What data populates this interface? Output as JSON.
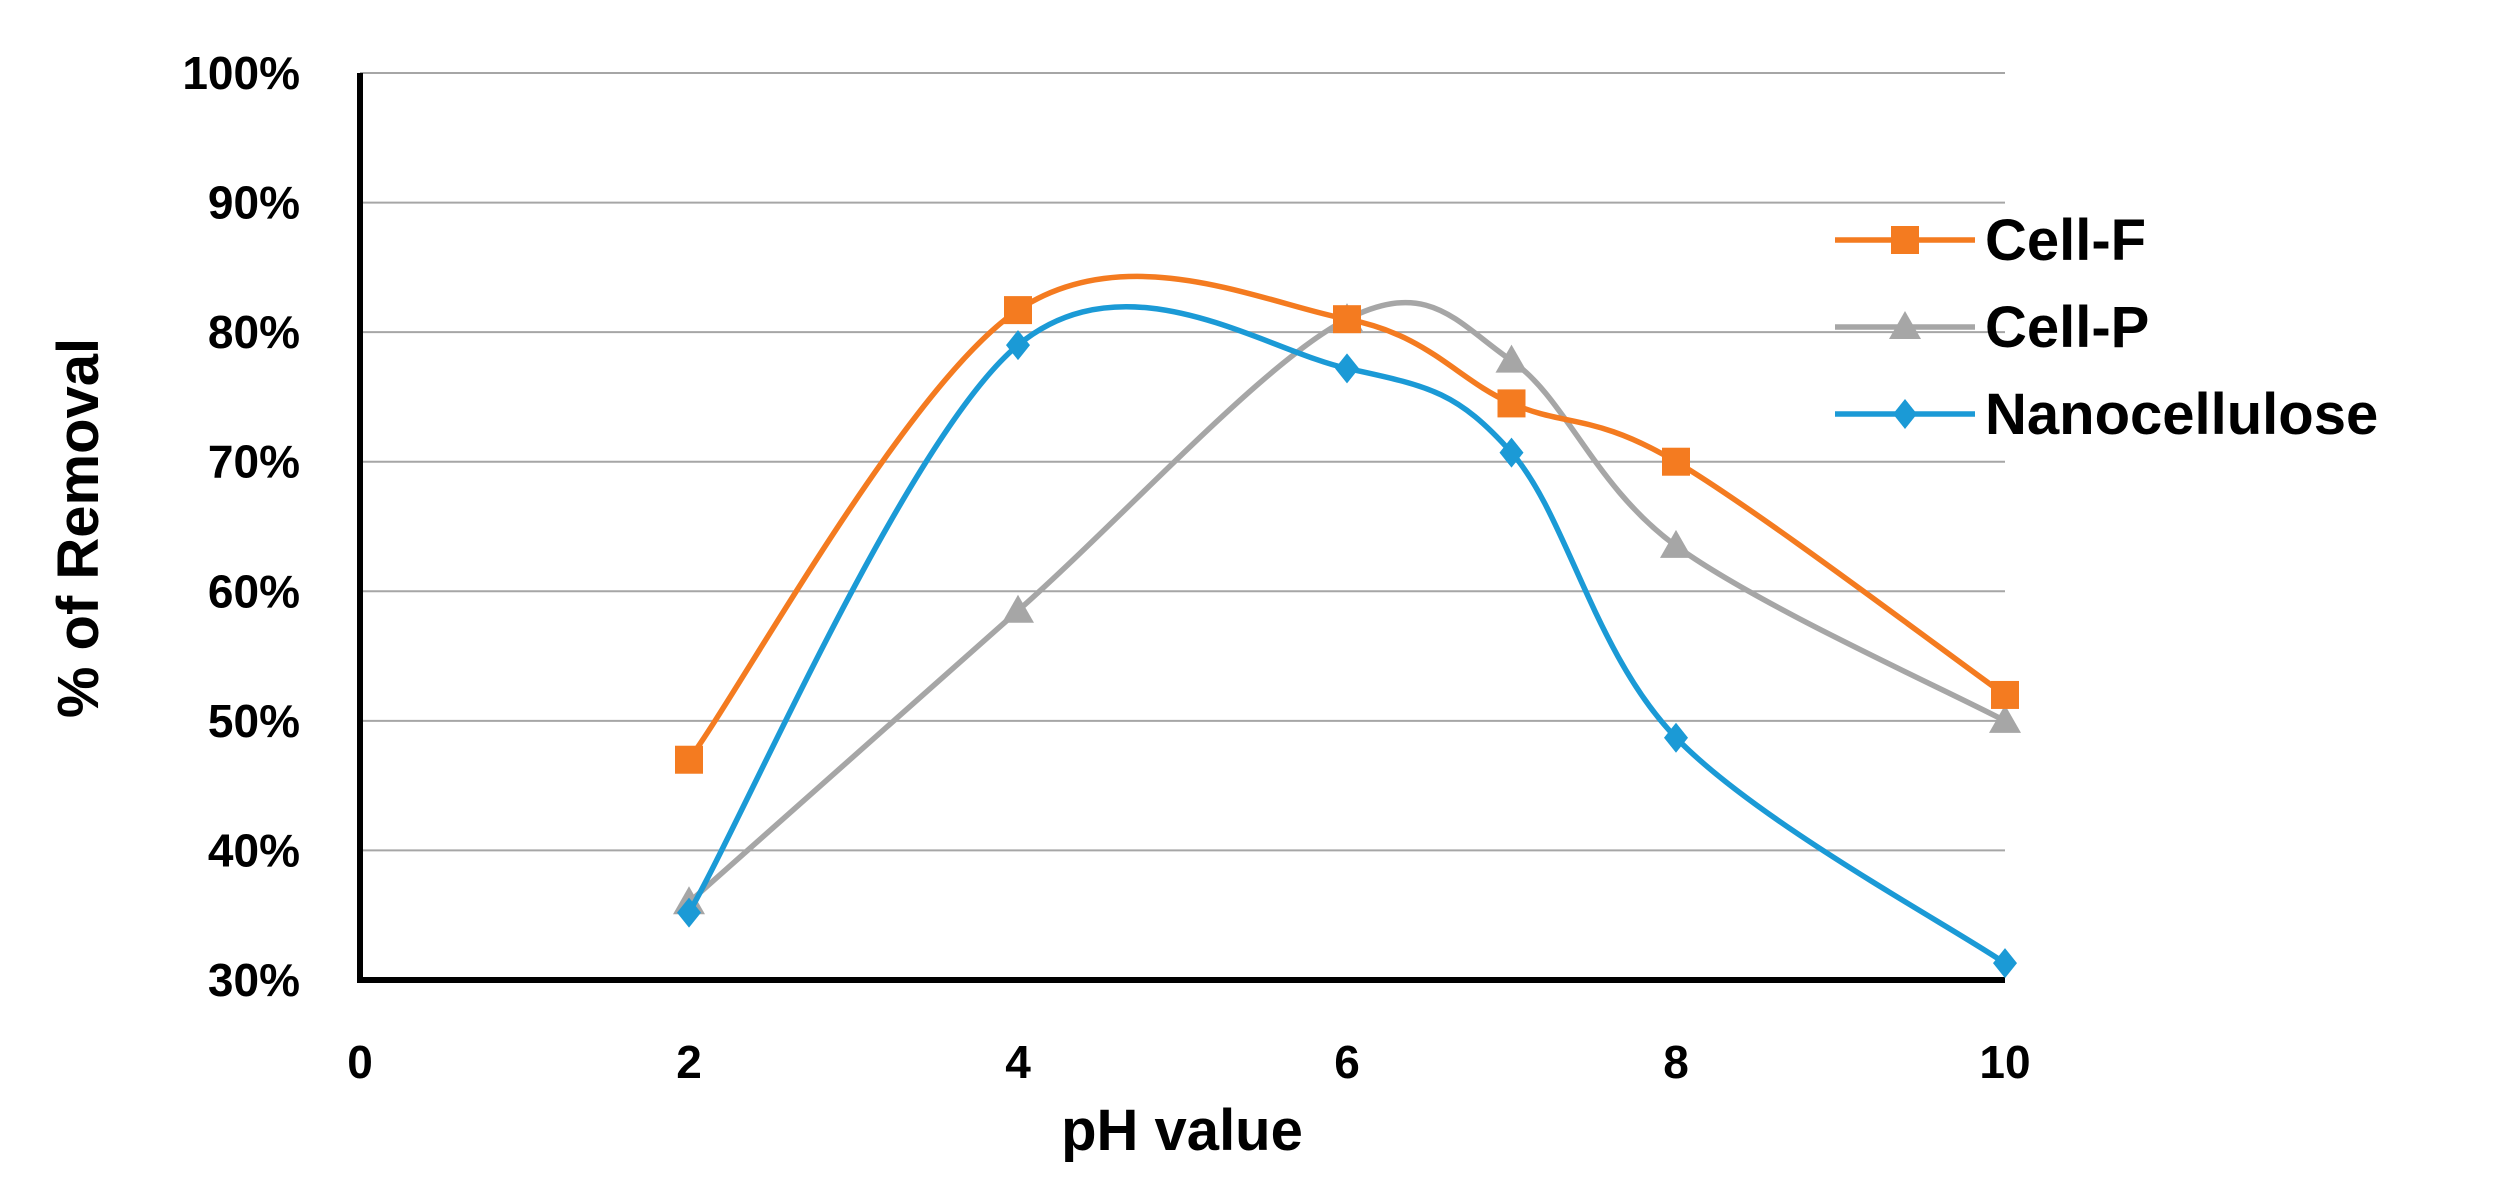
{
  "chart_data": {
    "type": "line",
    "title": "",
    "xlabel": "pH value",
    "ylabel": "% of Removal",
    "xlim": [
      0,
      10
    ],
    "ylim": [
      30,
      100
    ],
    "x_ticks": [
      0,
      2,
      4,
      6,
      8,
      10
    ],
    "x_tick_labels": [
      "0",
      "2",
      "4",
      "6",
      "8",
      "10"
    ],
    "y_ticks": [
      30,
      40,
      50,
      60,
      70,
      80,
      90,
      100
    ],
    "y_tick_labels": [
      "30%",
      "40%",
      "50%",
      "60%",
      "70%",
      "80%",
      "90%",
      "100%"
    ],
    "grid": true,
    "legend_position": "right",
    "smooth": true,
    "series": [
      {
        "name": "Cell-F",
        "color": "#F47B20",
        "marker": "square",
        "x": [
          2,
          4,
          6,
          7,
          8,
          10
        ],
        "values": [
          47,
          81.7,
          81,
          74.5,
          70,
          52
        ]
      },
      {
        "name": "Cell-P",
        "color": "#A6A6A6",
        "marker": "triangle",
        "x": [
          2,
          4,
          6,
          7,
          8,
          10
        ],
        "values": [
          36,
          58.5,
          81,
          77.8,
          63.5,
          50
        ]
      },
      {
        "name": "Nanocellulose",
        "color": "#1B9AD6",
        "marker": "diamond",
        "x": [
          2,
          4,
          6,
          7,
          8,
          10
        ],
        "values": [
          35.2,
          79,
          77.2,
          70.7,
          48.7,
          31.3
        ]
      }
    ]
  }
}
